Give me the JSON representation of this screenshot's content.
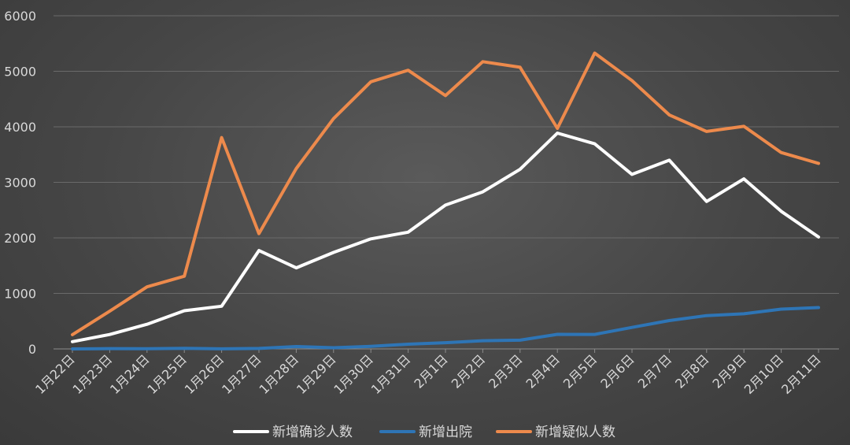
{
  "chart_data": {
    "type": "line",
    "title": "",
    "xlabel": "",
    "ylabel": "",
    "ylim": [
      0,
      6000
    ],
    "yticks": [
      0,
      1000,
      2000,
      3000,
      4000,
      5000,
      6000
    ],
    "grid": true,
    "legend_position": "bottom",
    "categories": [
      "1月22日",
      "1月23日",
      "1月24日",
      "1月25日",
      "1月26日",
      "1月27日",
      "1月28日",
      "1月29日",
      "1月30日",
      "1月31日",
      "2月1日",
      "2月2日",
      "2月3日",
      "2月4日",
      "2月5日",
      "2月6日",
      "2月7日",
      "2月8日",
      "2月9日",
      "2月10日",
      "2月11日"
    ],
    "series": [
      {
        "name": "新增确诊人数",
        "color": "#ffffff",
        "values": [
          131,
          259,
          444,
          688,
          769,
          1771,
          1459,
          1737,
          1982,
          2102,
          2590,
          2829,
          3235,
          3887,
          3694,
          3143,
          3399,
          2656,
          3062,
          2478,
          2015
        ]
      },
      {
        "name": "新增出院",
        "color": "#2e75b6",
        "values": [
          0,
          6,
          3,
          11,
          2,
          9,
          43,
          21,
          47,
          85,
          112,
          147,
          157,
          262,
          261,
          387,
          510,
          600,
          632,
          716,
          744
        ]
      },
      {
        "name": "新增疑似人数",
        "color": "#ed8a4c",
        "values": [
          257,
          680,
          1118,
          1309,
          3806,
          2077,
          3248,
          4148,
          4812,
          5019,
          4562,
          5173,
          5072,
          3971,
          5328,
          4833,
          4214,
          3916,
          4008,
          3536,
          3342
        ]
      }
    ]
  }
}
